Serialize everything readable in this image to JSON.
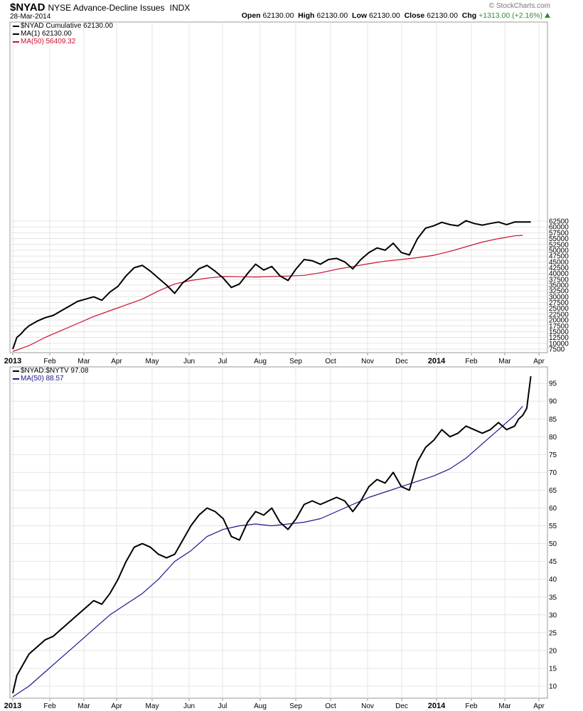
{
  "header": {
    "symbol": "$NYAD",
    "name": "NYSE Advance-Decline Issues",
    "exchange": "INDX",
    "date": "28-Mar-2014",
    "credit": "© StockCharts.com",
    "open_label": "Open",
    "open": "62130.00",
    "high_label": "High",
    "high": "62130.00",
    "low_label": "Low",
    "low": "62130.00",
    "close_label": "Close",
    "close": "62130.00",
    "chg_label": "Chg",
    "chg": "+1313.00 (+2.16%)"
  },
  "colors": {
    "price": "#000000",
    "ma_top": "#c8102e",
    "ma_bottom": "#1a1a8c",
    "grid": "#e4e4e4",
    "frame": "#999999"
  },
  "chart_data": [
    {
      "type": "line",
      "x_tick_labels": [
        "2013",
        "Feb",
        "Mar",
        "Apr",
        "May",
        "Jun",
        "Jul",
        "Aug",
        "Sep",
        "Oct",
        "Nov",
        "Dec",
        "2014",
        "Feb",
        "Mar",
        "Apr"
      ],
      "x_range_weeks": [
        0,
        65
      ],
      "y_tick_labels": [
        "7500",
        "10000",
        "12500",
        "15000",
        "17500",
        "20000",
        "22500",
        "25000",
        "27500",
        "30000",
        "32500",
        "35000",
        "37500",
        "40000",
        "42500",
        "45000",
        "47500",
        "50000",
        "52500",
        "55000",
        "57500",
        "60000",
        "62500"
      ],
      "ylim": [
        6000,
        64000
      ],
      "legend_placement": "top-left",
      "legend": [
        {
          "text": "$NYAD Cumulative 62130.00"
        },
        {
          "text": "MA(1) 62130.00"
        },
        {
          "text": "MA(50) 56409.32"
        }
      ],
      "series": [
        {
          "name": "MA(1) 62130.00",
          "x": [
            0,
            0.5,
            1,
            1.5,
            2,
            3,
            4,
            5,
            6,
            7,
            8,
            9,
            10,
            11,
            12,
            13,
            14,
            15,
            16,
            17,
            18,
            19,
            20,
            21,
            22,
            23,
            24,
            25,
            26,
            27,
            28,
            29,
            30,
            31,
            32,
            33,
            34,
            35,
            36,
            37,
            38,
            39,
            40,
            41,
            42,
            43,
            44,
            45,
            46,
            47,
            48,
            49,
            50,
            51,
            52,
            53,
            54,
            55,
            56,
            57,
            58,
            59,
            60,
            61,
            62,
            62.5,
            63,
            63.5,
            64
          ],
          "values": [
            7500,
            12500,
            14000,
            16000,
            17500,
            19500,
            21000,
            22000,
            24000,
            26000,
            28000,
            29000,
            30000,
            28500,
            32000,
            34500,
            39000,
            42500,
            43500,
            41000,
            38000,
            35000,
            31500,
            36000,
            38500,
            42000,
            43500,
            41000,
            38000,
            34000,
            35500,
            40000,
            44000,
            41500,
            43000,
            39000,
            37000,
            42000,
            46000,
            45500,
            44000,
            46000,
            46500,
            45000,
            42000,
            46000,
            49000,
            51000,
            50000,
            53000,
            49000,
            48000,
            55000,
            59500,
            60500,
            62000,
            61000,
            60500,
            62700,
            61500,
            60800,
            61500,
            62130,
            61000,
            62130,
            62130,
            62130,
            62130,
            62130
          ]
        },
        {
          "name": "MA(50) 56409.32",
          "x": [
            0,
            2,
            4,
            6,
            8,
            10,
            12,
            14,
            16,
            18,
            20,
            22,
            24,
            26,
            28,
            30,
            32,
            34,
            36,
            38,
            40,
            42,
            44,
            46,
            48,
            50,
            52,
            54,
            56,
            58,
            60,
            62,
            63
          ],
          "values": [
            6500,
            9000,
            12500,
            15500,
            18500,
            21500,
            24000,
            26500,
            29000,
            32500,
            35500,
            37000,
            38000,
            38700,
            38600,
            38500,
            38700,
            38900,
            39200,
            40300,
            41800,
            43000,
            44200,
            45300,
            46000,
            46800,
            47800,
            49500,
            51500,
            53500,
            55000,
            56200,
            56409
          ]
        }
      ]
    },
    {
      "type": "line",
      "x_tick_labels": [
        "2013",
        "Feb",
        "Mar",
        "Apr",
        "May",
        "Jun",
        "Jul",
        "Aug",
        "Sep",
        "Oct",
        "Nov",
        "Dec",
        "2014",
        "Feb",
        "Mar",
        "Apr"
      ],
      "x_range_weeks": [
        0,
        65
      ],
      "y_tick_labels": [
        "10",
        "15",
        "20",
        "25",
        "30",
        "35",
        "40",
        "45",
        "50",
        "55",
        "60",
        "65",
        "70",
        "75",
        "80",
        "85",
        "90",
        "95"
      ],
      "ylim": [
        7,
        99
      ],
      "legend_placement": "top-left",
      "legend": [
        {
          "text": "$NYAD:$NYTV 97.08"
        },
        {
          "text": "MA(50) 88.57"
        }
      ],
      "series": [
        {
          "name": "$NYAD:$NYTV 97.08",
          "x": [
            0,
            0.5,
            1,
            1.5,
            2,
            3,
            4,
            5,
            6,
            7,
            8,
            9,
            10,
            11,
            12,
            13,
            14,
            15,
            16,
            17,
            18,
            19,
            20,
            21,
            22,
            23,
            24,
            25,
            26,
            27,
            28,
            29,
            30,
            31,
            32,
            33,
            34,
            35,
            36,
            37,
            38,
            39,
            40,
            41,
            42,
            43,
            44,
            45,
            46,
            47,
            48,
            49,
            50,
            51,
            52,
            53,
            54,
            55,
            56,
            57,
            58,
            59,
            60,
            61,
            62,
            62.5,
            63,
            63.5,
            64
          ],
          "values": [
            8,
            13,
            15,
            17,
            19,
            21,
            23,
            24,
            26,
            28,
            30,
            32,
            34,
            33,
            36,
            40,
            45,
            49,
            50,
            49,
            47,
            46,
            47,
            51,
            55,
            58,
            60,
            59,
            57,
            52,
            51,
            56,
            59,
            58,
            60,
            56,
            54,
            57,
            61,
            62,
            61,
            62,
            63,
            62,
            59,
            62,
            66,
            68,
            67,
            70,
            66,
            65,
            73,
            77,
            79,
            82,
            80,
            81,
            83,
            82,
            81,
            82,
            84,
            82,
            83,
            85,
            86,
            88,
            97
          ]
        },
        {
          "name": "MA(50) 88.57",
          "x": [
            0,
            2,
            4,
            6,
            8,
            10,
            12,
            14,
            16,
            18,
            20,
            22,
            24,
            26,
            28,
            30,
            32,
            34,
            36,
            38,
            40,
            42,
            44,
            46,
            48,
            50,
            52,
            54,
            56,
            58,
            60,
            62,
            63
          ],
          "values": [
            7,
            10,
            14,
            18,
            22,
            26,
            30,
            33,
            36,
            40,
            45,
            48,
            52,
            54,
            55,
            55.5,
            55,
            55.5,
            56,
            57,
            59,
            61,
            63,
            64.5,
            66,
            67.5,
            69,
            71,
            74,
            78,
            82,
            86,
            88.57
          ]
        }
      ]
    }
  ]
}
